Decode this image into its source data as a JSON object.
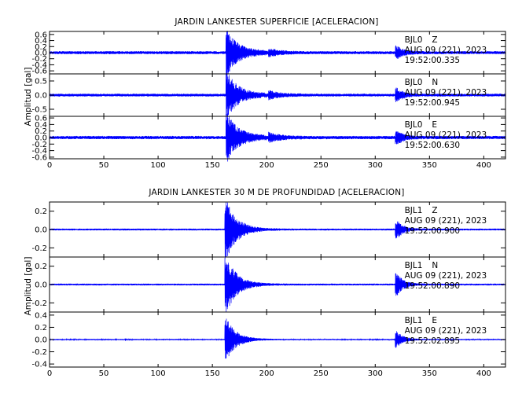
{
  "chart_data": [
    {
      "type": "line",
      "title": "JARDIN LANKESTER SUPERFICIE [ACELERACION]",
      "ylabel": "Amplitud [gal]",
      "xlim": [
        0,
        420
      ],
      "x_ticks": [
        "0",
        "50",
        "100",
        "150",
        "200",
        "250",
        "300",
        "350",
        "400"
      ],
      "line_color": "#0000ff",
      "panels": [
        {
          "station": "BJL0",
          "channel": "Z",
          "date": "AUG 09 (221), 2023",
          "time": "19:52:00.335",
          "ylim": [
            -0.7,
            0.7
          ],
          "y_ticks": [
            -0.6,
            -0.4,
            -0.2,
            0.0,
            0.2,
            0.4,
            0.6
          ],
          "y_tick_labels": [
            "-0.6",
            "-0.4",
            "-0.2",
            "0.0",
            "0.2",
            "0.4",
            "0.6"
          ],
          "noise": 0.05,
          "events": [
            {
              "t": 164,
              "amp": 0.62,
              "decay": 9,
              "noise_amp": 0.1,
              "end": 200
            },
            {
              "t": 203,
              "amp": 0.1,
              "decay": 10
            },
            {
              "t": 320,
              "amp": 0.2,
              "decay": 6
            }
          ]
        },
        {
          "station": "BJL0",
          "channel": "N",
          "date": "AUG 09 (221), 2023",
          "time": "19:52:00.945",
          "ylim": [
            -0.75,
            0.75
          ],
          "y_ticks": [
            -0.5,
            0.0,
            0.5
          ],
          "y_tick_labels": [
            "-0.5",
            "0.0",
            "0.5"
          ],
          "noise": 0.05,
          "events": [
            {
              "t": 164,
              "amp": 0.7,
              "decay": 9,
              "noise_amp": 0.1,
              "end": 200
            },
            {
              "t": 203,
              "amp": 0.12,
              "decay": 10
            },
            {
              "t": 320,
              "amp": 0.22,
              "decay": 6
            }
          ]
        },
        {
          "station": "BJL0",
          "channel": "E",
          "date": "AUG 09 (221), 2023",
          "time": "19:52:00.630",
          "ylim": [
            -0.65,
            0.65
          ],
          "y_ticks": [
            -0.6,
            -0.4,
            -0.2,
            0.0,
            0.2,
            0.4,
            0.6
          ],
          "y_tick_labels": [
            "-0.6",
            "-0.4",
            "-0.2",
            "0.0",
            "0.2",
            "0.4",
            "0.6"
          ],
          "noise": 0.05,
          "events": [
            {
              "t": 164,
              "amp": 0.6,
              "decay": 9,
              "noise_amp": 0.1,
              "end": 200
            },
            {
              "t": 203,
              "amp": 0.12,
              "decay": 10
            },
            {
              "t": 320,
              "amp": 0.2,
              "decay": 6
            }
          ]
        }
      ]
    },
    {
      "type": "line",
      "title": "JARDIN LANKESTER 30 M DE PROFUNDIDAD [ACELERACION]",
      "ylabel": "Amplitud [gal]",
      "xlim": [
        0,
        420
      ],
      "x_ticks": [
        "0",
        "50",
        "100",
        "150",
        "200",
        "250",
        "300",
        "350",
        "400"
      ],
      "line_color": "#0000ff",
      "panels": [
        {
          "station": "BJL1",
          "channel": "Z",
          "date": "AUG 09 (221), 2023",
          "time": "19:52:00.900",
          "ylim": [
            -0.3,
            0.3
          ],
          "y_ticks": [
            -0.2,
            0.0,
            0.2
          ],
          "y_tick_labels": [
            "-0.2",
            "0.0",
            "0.2"
          ],
          "noise": 0.01,
          "events": [
            {
              "t": 163,
              "amp": 0.32,
              "decay": 10
            },
            {
              "t": 320,
              "amp": 0.1,
              "decay": 6
            }
          ]
        },
        {
          "station": "BJL1",
          "channel": "N",
          "date": "AUG 09 (221), 2023",
          "time": "19:52:00.890",
          "ylim": [
            -0.3,
            0.3
          ],
          "y_ticks": [
            -0.2,
            0.0,
            0.2
          ],
          "y_tick_labels": [
            "-0.2",
            "0.0",
            "0.2"
          ],
          "noise": 0.01,
          "events": [
            {
              "t": 163,
              "amp": 0.3,
              "decay": 10
            },
            {
              "t": 320,
              "amp": 0.12,
              "decay": 6
            }
          ]
        },
        {
          "station": "BJL1",
          "channel": "E",
          "date": "AUG 09 (221), 2023",
          "time": "19:52:02.895",
          "ylim": [
            -0.45,
            0.45
          ],
          "y_ticks": [
            -0.4,
            -0.2,
            0.0,
            0.2,
            0.4
          ],
          "y_tick_labels": [
            "-0.4",
            "-0.2",
            "0.0",
            "0.2",
            "0.4"
          ],
          "noise": 0.01,
          "events": [
            {
              "t": 163,
              "amp": 0.35,
              "decay": 9
            },
            {
              "t": 320,
              "amp": 0.13,
              "decay": 6
            }
          ]
        }
      ]
    }
  ]
}
